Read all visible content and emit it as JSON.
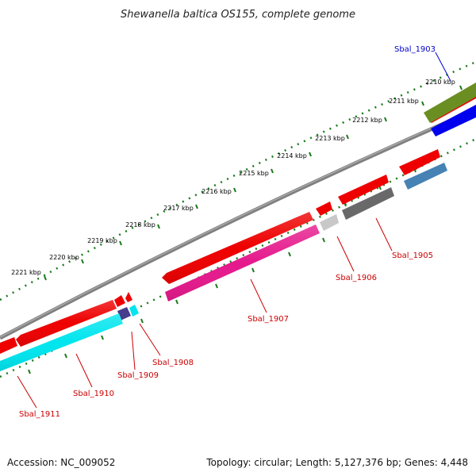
{
  "title": "Shewanella baltica OS155, complete genome",
  "footer": {
    "accession": "Accession: NC_009052",
    "info": "Topology: circular; Length: 5,127,376 bp; Genes: 4,448"
  },
  "ticks": [
    "2210 kbp",
    "2211 kbp",
    "2212 kbp",
    "2213 kbp",
    "2214 kbp",
    "2215 kbp",
    "2216 kbp",
    "2217 kbp",
    "2218 kbp",
    "2219 kbp",
    "2220 kbp",
    "2221 kbp"
  ],
  "genes": [
    {
      "id": "Sbal_1903",
      "color": "#0000cc"
    },
    {
      "id": "Sbal_1905",
      "color": "#cc0000"
    },
    {
      "id": "Sbal_1906",
      "color": "#cc0000"
    },
    {
      "id": "Sbal_1907",
      "color": "#cc0000"
    },
    {
      "id": "Sbal_1908",
      "color": "#cc0000"
    },
    {
      "id": "Sbal_1909",
      "color": "#cc0000"
    },
    {
      "id": "Sbal_1910",
      "color": "#cc0000"
    },
    {
      "id": "Sbal_1911",
      "color": "#cc0000"
    }
  ],
  "colors": {
    "backbone": "#808080",
    "tick_dots": "#1a7a1a",
    "forward_cds": "#ee0000",
    "reverse_olive": "#6b8e23",
    "reverse_blue": "#0000ee",
    "reverse_steel": "#4682b4",
    "reverse_gray": "#696969",
    "reverse_lightgray": "#c8c8c8",
    "reverse_magenta": "#e5198c",
    "reverse_cyan": "#00e5ee",
    "reverse_navy": "#483d8b"
  }
}
